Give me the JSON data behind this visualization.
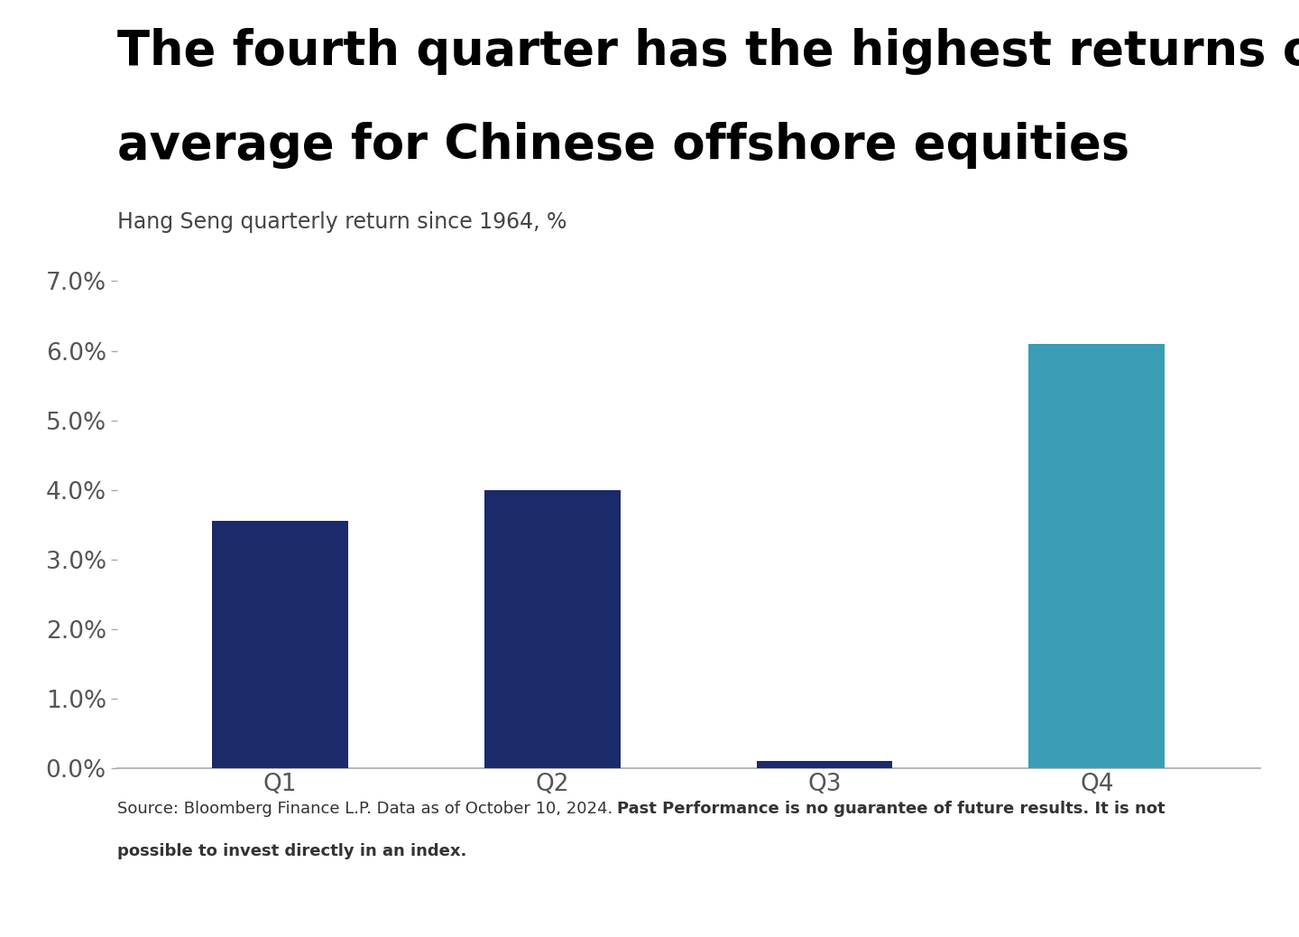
{
  "title_line1": "The fourth quarter has the highest returns on",
  "title_line2": "average for Chinese offshore equities",
  "subtitle": "Hang Seng quarterly return since 1964, %",
  "categories": [
    "Q1",
    "Q2",
    "Q3",
    "Q4"
  ],
  "values": [
    0.0355,
    0.04,
    0.001,
    0.061
  ],
  "bar_colors": [
    "#1b2a6b",
    "#1b2a6b",
    "#1b2a6b",
    "#3a9db5"
  ],
  "ylim": [
    0,
    0.07
  ],
  "yticks": [
    0.0,
    0.01,
    0.02,
    0.03,
    0.04,
    0.05,
    0.06,
    0.07
  ],
  "background_color": "#ffffff",
  "title_fontsize": 38,
  "subtitle_fontsize": 17,
  "tick_fontsize": 19,
  "source_normal": "Source: Bloomberg Finance L.P. Data as of October 10, 2024. ",
  "source_bold": "Past Performance is no guarantee of future results. It is not\npossible to invest directly in an index.",
  "source_fontsize": 13
}
